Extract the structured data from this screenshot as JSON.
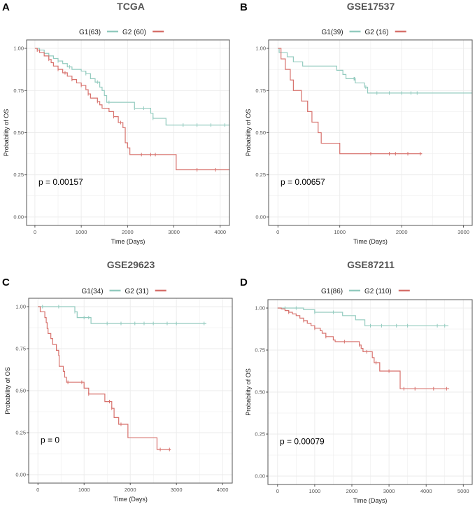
{
  "colors": {
    "G1": "#93cbbf",
    "G2": "#d7716c",
    "grid": "#ebebeb",
    "frame": "#555555"
  },
  "chart_data": [
    {
      "type": "line",
      "subtype": "kaplan-meier",
      "panel": "A",
      "title": "TCGA",
      "xlabel": "Time (Days)",
      "ylabel": "Probability of OS",
      "xlim": [
        -180,
        4200
      ],
      "ylim": [
        -0.05,
        1.05
      ],
      "xticks": [
        0,
        1000,
        2000,
        3000,
        4000
      ],
      "yticks": [
        "0.00",
        "0.25",
        "0.50",
        "0.75",
        "1.00"
      ],
      "pvalue": "p =  0.00157",
      "legend_position": "top",
      "series": [
        {
          "name": "G1(63)",
          "key": "G1",
          "end": 4200,
          "steps": [
            [
              0,
              1
            ],
            [
              100,
              0.99
            ],
            [
              200,
              0.97
            ],
            [
              300,
              0.955
            ],
            [
              400,
              0.94
            ],
            [
              500,
              0.925
            ],
            [
              600,
              0.91
            ],
            [
              700,
              0.89
            ],
            [
              800,
              0.875
            ],
            [
              1000,
              0.865
            ],
            [
              1100,
              0.85
            ],
            [
              1200,
              0.82
            ],
            [
              1300,
              0.8
            ],
            [
              1400,
              0.77
            ],
            [
              1450,
              0.75
            ],
            [
              1500,
              0.72
            ],
            [
              1550,
              0.68
            ],
            [
              2150,
              0.645
            ],
            [
              2500,
              0.615
            ],
            [
              2550,
              0.585
            ],
            [
              2830,
              0.545
            ]
          ],
          "censor": [
            300,
            500,
            750,
            1100,
            1350,
            1600,
            2150,
            2350,
            2550,
            3200,
            3500,
            3800,
            4100
          ]
        },
        {
          "name": "G2 (60)",
          "key": "G2",
          "end": 4200,
          "steps": [
            [
              0,
              1
            ],
            [
              50,
              0.99
            ],
            [
              100,
              0.975
            ],
            [
              200,
              0.955
            ],
            [
              300,
              0.935
            ],
            [
              350,
              0.915
            ],
            [
              400,
              0.895
            ],
            [
              500,
              0.875
            ],
            [
              600,
              0.855
            ],
            [
              700,
              0.835
            ],
            [
              800,
              0.815
            ],
            [
              900,
              0.795
            ],
            [
              1000,
              0.78
            ],
            [
              1100,
              0.755
            ],
            [
              1150,
              0.73
            ],
            [
              1200,
              0.705
            ],
            [
              1350,
              0.685
            ],
            [
              1400,
              0.665
            ],
            [
              1450,
              0.645
            ],
            [
              1600,
              0.625
            ],
            [
              1700,
              0.595
            ],
            [
              1800,
              0.56
            ],
            [
              1900,
              0.53
            ],
            [
              1950,
              0.44
            ],
            [
              2000,
              0.41
            ],
            [
              2050,
              0.37
            ],
            [
              3050,
              0.28
            ]
          ],
          "censor": [
            50,
            300,
            500,
            650,
            800,
            1000,
            1150,
            1350,
            1700,
            1850,
            2300,
            2500,
            2600,
            3500,
            3900
          ]
        }
      ]
    },
    {
      "type": "line",
      "subtype": "kaplan-meier",
      "panel": "B",
      "title": "GSE17537",
      "xlabel": "Time (Days)",
      "ylabel": "Probability of OS",
      "xlim": [
        -150,
        3140
      ],
      "ylim": [
        -0.05,
        1.05
      ],
      "xticks": [
        0,
        1000,
        2000,
        3000
      ],
      "yticks": [
        "0.00",
        "0.25",
        "0.50",
        "0.75",
        "1.00"
      ],
      "pvalue": "p =  0.00657",
      "legend_position": "top",
      "series": [
        {
          "name": "G1(39)",
          "key": "G1",
          "end": 3140,
          "steps": [
            [
              0,
              1
            ],
            [
              20,
              0.975
            ],
            [
              150,
              0.95
            ],
            [
              250,
              0.92
            ],
            [
              400,
              0.895
            ],
            [
              950,
              0.87
            ],
            [
              1050,
              0.845
            ],
            [
              1100,
              0.82
            ],
            [
              1250,
              0.795
            ],
            [
              1400,
              0.77
            ],
            [
              1450,
              0.735
            ]
          ],
          "censor": [
            1230,
            1240,
            1420,
            1600,
            1800,
            2000,
            2150,
            2250
          ]
        },
        {
          "name": "G2 (16)",
          "key": "G2",
          "end": 2330,
          "steps": [
            [
              0,
              1
            ],
            [
              50,
              0.9375
            ],
            [
              120,
              0.875
            ],
            [
              200,
              0.8125
            ],
            [
              250,
              0.75
            ],
            [
              380,
              0.6875
            ],
            [
              480,
              0.625
            ],
            [
              550,
              0.5625
            ],
            [
              650,
              0.5
            ],
            [
              700,
              0.4375
            ],
            [
              1000,
              0.375
            ]
          ],
          "censor": [
            1500,
            1800,
            1900,
            2100,
            2300
          ]
        }
      ]
    },
    {
      "type": "line",
      "subtype": "kaplan-meier",
      "panel": "C",
      "title": "GSE29623",
      "xlabel": "Time (Days)",
      "ylabel": "Probability of OS",
      "xlim": [
        -200,
        4210
      ],
      "ylim": [
        -0.05,
        1.05
      ],
      "xticks": [
        0,
        1000,
        2000,
        3000,
        4000
      ],
      "yticks": [
        "0.00",
        "0.25",
        "0.50",
        "0.75",
        "1.00"
      ],
      "pvalue": "p =  0",
      "legend_position": "top",
      "series": [
        {
          "name": "G1(34)",
          "key": "G1",
          "end": 3650,
          "steps": [
            [
              0,
              1
            ],
            [
              800,
              0.97
            ],
            [
              850,
              0.935
            ],
            [
              1150,
              0.9
            ]
          ],
          "censor": [
            100,
            450,
            800,
            1000,
            1100,
            1500,
            1800,
            2100,
            2300,
            2500,
            2800,
            3000,
            3600
          ]
        },
        {
          "name": "G2 (31)",
          "key": "G2",
          "end": 2880,
          "steps": [
            [
              0,
              1
            ],
            [
              50,
              0.97
            ],
            [
              150,
              0.935
            ],
            [
              180,
              0.905
            ],
            [
              200,
              0.87
            ],
            [
              220,
              0.84
            ],
            [
              280,
              0.81
            ],
            [
              320,
              0.775
            ],
            [
              400,
              0.74
            ],
            [
              450,
              0.71
            ],
            [
              460,
              0.645
            ],
            [
              550,
              0.615
            ],
            [
              580,
              0.58
            ],
            [
              620,
              0.55
            ],
            [
              1000,
              0.515
            ],
            [
              1100,
              0.48
            ],
            [
              1450,
              0.435
            ],
            [
              1600,
              0.395
            ],
            [
              1650,
              0.34
            ],
            [
              1750,
              0.3
            ],
            [
              1950,
              0.22
            ],
            [
              2580,
              0.15
            ]
          ],
          "censor": [
            650,
            950,
            1100,
            1550,
            1600,
            1800,
            2650,
            2850
          ]
        }
      ]
    },
    {
      "type": "line",
      "subtype": "kaplan-meier",
      "panel": "D",
      "title": "GSE87211",
      "xlabel": "Time (Days)",
      "ylabel": "Probability of OS",
      "xlim": [
        -260,
        5240
      ],
      "ylim": [
        -0.05,
        1.05
      ],
      "xticks": [
        0,
        1000,
        2000,
        3000,
        4000,
        5000
      ],
      "yticks": [
        "0.00",
        "0.25",
        "0.50",
        "0.75",
        "1.00"
      ],
      "pvalue": "p =  0.00079",
      "legend_position": "top",
      "series": [
        {
          "name": "G1(86)",
          "key": "G1",
          "end": 4600,
          "steps": [
            [
              0,
              1
            ],
            [
              700,
              0.99
            ],
            [
              1000,
              0.975
            ],
            [
              1750,
              0.955
            ],
            [
              2100,
              0.93
            ],
            [
              2350,
              0.895
            ]
          ],
          "censor": [
            200,
            500,
            1000,
            1500,
            2500,
            2800,
            3200,
            3500,
            4300,
            4500
          ]
        },
        {
          "name": "G2 (110)",
          "key": "G2",
          "end": 4620,
          "steps": [
            [
              0,
              1
            ],
            [
              100,
              0.995
            ],
            [
              200,
              0.985
            ],
            [
              300,
              0.975
            ],
            [
              400,
              0.965
            ],
            [
              500,
              0.955
            ],
            [
              600,
              0.94
            ],
            [
              700,
              0.925
            ],
            [
              800,
              0.91
            ],
            [
              900,
              0.895
            ],
            [
              1000,
              0.88
            ],
            [
              1150,
              0.865
            ],
            [
              1200,
              0.85
            ],
            [
              1300,
              0.83
            ],
            [
              1500,
              0.81
            ],
            [
              1550,
              0.8
            ],
            [
              2200,
              0.78
            ],
            [
              2250,
              0.76
            ],
            [
              2300,
              0.74
            ],
            [
              2550,
              0.705
            ],
            [
              2600,
              0.675
            ],
            [
              2750,
              0.625
            ],
            [
              3300,
              0.52
            ]
          ],
          "censor": [
            300,
            700,
            1000,
            1300,
            1800,
            2200,
            2400,
            2650,
            3000,
            3400,
            3700,
            4200,
            4550
          ]
        }
      ]
    }
  ]
}
